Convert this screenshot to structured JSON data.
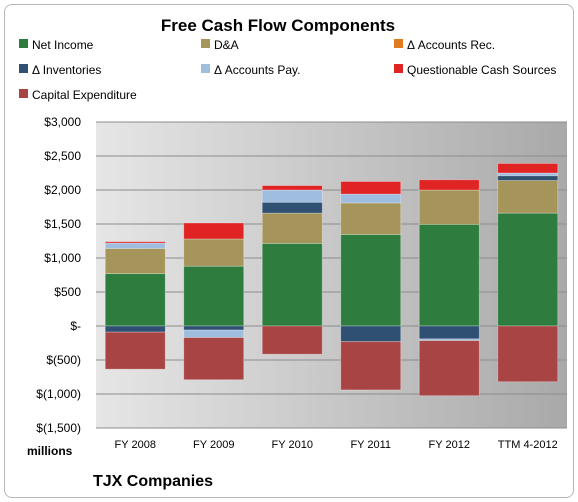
{
  "chart_data": {
    "type": "bar",
    "stacked": true,
    "title": "Free Cash Flow Components",
    "unit_label": "millions",
    "company": "TJX Companies",
    "categories": [
      "FY 2008",
      "FY 2009",
      "FY 2010",
      "FY 2011",
      "FY 2012",
      "TTM 4-2012"
    ],
    "ylim": [
      -1500,
      3000
    ],
    "yticks": [
      3000,
      2500,
      2000,
      1500,
      1000,
      500,
      0,
      -500,
      -1000,
      -1500
    ],
    "ytick_labels": [
      "$3,000",
      "$2,500",
      "$2,000",
      "$1,500",
      "$1,000",
      "$500",
      "$-",
      "$(500)",
      "$(1,000)",
      "$(1,500)"
    ],
    "grid": true,
    "legend_position": "top",
    "series": [
      {
        "name": "Net Income",
        "color": "#2e7d3e",
        "values": [
          770,
          880,
          1215,
          1345,
          1495,
          1660
        ]
      },
      {
        "name": "D&A",
        "color": "#a6955a",
        "values": [
          370,
          400,
          445,
          465,
          505,
          480
        ]
      },
      {
        "name": "Δ Accounts Rec.",
        "color": "#e07b1f",
        "values": [
          0,
          0,
          0,
          0,
          0,
          0
        ]
      },
      {
        "name": "Δ Inventories",
        "color": "#2f4f73",
        "values": [
          -90,
          -60,
          160,
          -230,
          -190,
          70
        ]
      },
      {
        "name": "Δ Accounts Pay.",
        "color": "#9fbddf",
        "values": [
          80,
          -110,
          180,
          130,
          -25,
          40
        ]
      },
      {
        "name": "Questionable Cash Sources",
        "color": "#e02424",
        "values": [
          20,
          235,
          65,
          185,
          150,
          140
        ]
      },
      {
        "name": "Capital Expenditure",
        "color": "#a84444",
        "values": [
          -545,
          -620,
          -415,
          -710,
          -810,
          -820
        ]
      }
    ]
  }
}
